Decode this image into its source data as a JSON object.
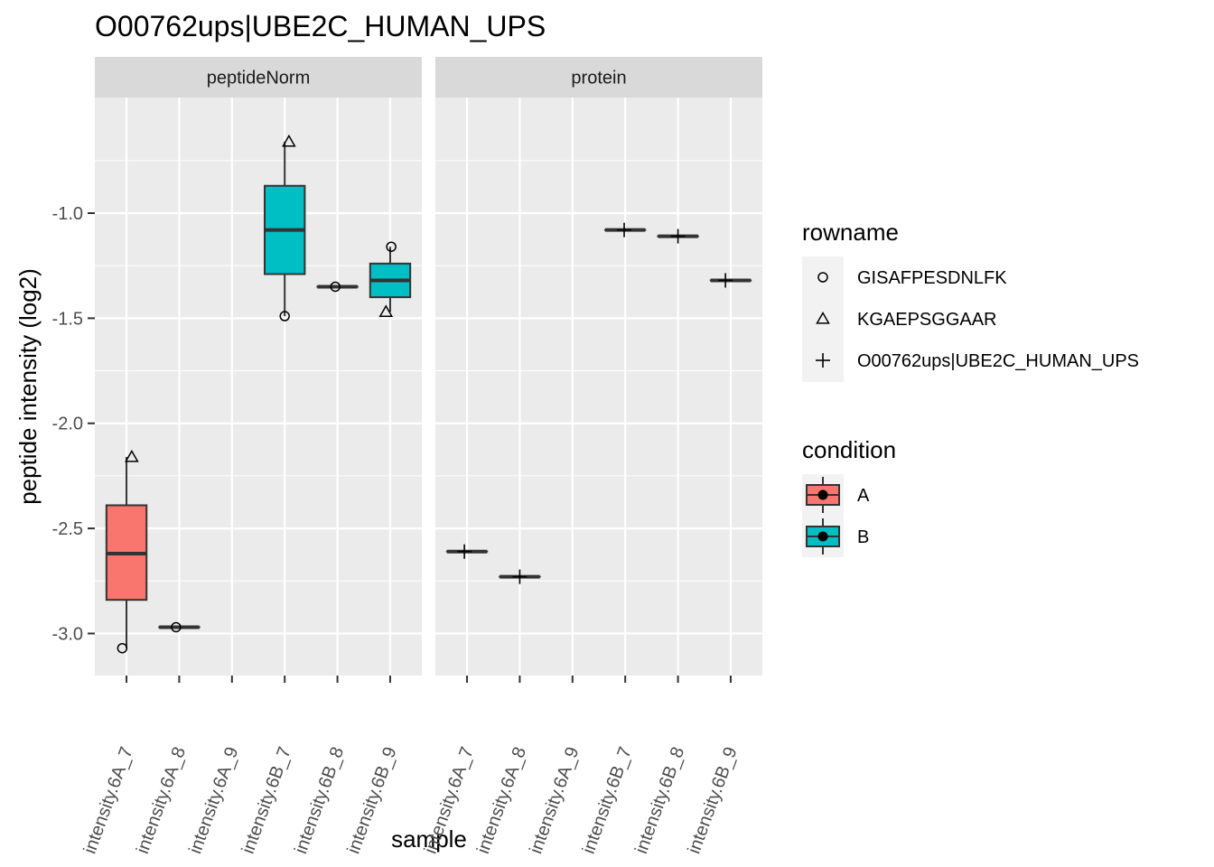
{
  "chart_data": {
    "type": "boxplot",
    "title": "O00762ups|UBE2C_HUMAN_UPS",
    "xlabel": "sample",
    "ylabel": "peptide intensity (log2)",
    "ylim": [
      -3.2,
      -0.45
    ],
    "yticks": [
      -3.0,
      -2.5,
      -2.0,
      -1.5,
      -1.0
    ],
    "ytick_labels": [
      "-3.0",
      "-2.5",
      "-2.0",
      "-1.5",
      "-1.0"
    ],
    "grid": true,
    "categories": [
      "Intensity.6A_7",
      "Intensity.6A_8",
      "Intensity.6A_9",
      "Intensity.6B_7",
      "Intensity.6B_8",
      "Intensity.6B_9"
    ],
    "category_tick_labels": [
      "intensity.6A_7",
      "intensity.6A_8",
      "intensity.6A_9",
      "intensity.6B_7",
      "intensity.6B_8",
      "intensity.6B_9"
    ],
    "facets": [
      {
        "label": "peptideNorm",
        "boxes": [
          {
            "category": 0,
            "condition": "A",
            "low": -3.07,
            "q1": -2.84,
            "median": -2.62,
            "q3": -2.39,
            "high": -2.16
          },
          {
            "category": 1,
            "condition": "A",
            "low": -2.97,
            "q1": -2.97,
            "median": -2.97,
            "q3": -2.97,
            "high": -2.97
          },
          {
            "category": 3,
            "condition": "B",
            "low": -1.49,
            "q1": -1.29,
            "median": -1.08,
            "q3": -0.87,
            "high": -0.66
          },
          {
            "category": 4,
            "condition": "B",
            "low": -1.35,
            "q1": -1.35,
            "median": -1.35,
            "q3": -1.35,
            "high": -1.35
          },
          {
            "category": 5,
            "condition": "B",
            "low": -1.47,
            "q1": -1.4,
            "median": -1.32,
            "q3": -1.24,
            "high": -1.16
          }
        ],
        "points": [
          {
            "category": 0,
            "rowname": "GISAFPESDNLFK",
            "y": -3.07,
            "jitter": -0.08
          },
          {
            "category": 0,
            "rowname": "KGAEPSGGAAR",
            "y": -2.16,
            "jitter": 0.1
          },
          {
            "category": 1,
            "rowname": "GISAFPESDNLFK",
            "y": -2.97,
            "jitter": -0.06
          },
          {
            "category": 3,
            "rowname": "GISAFPESDNLFK",
            "y": -1.49,
            "jitter": 0.0
          },
          {
            "category": 3,
            "rowname": "KGAEPSGGAAR",
            "y": -0.66,
            "jitter": 0.08
          },
          {
            "category": 4,
            "rowname": "GISAFPESDNLFK",
            "y": -1.35,
            "jitter": -0.04
          },
          {
            "category": 5,
            "rowname": "GISAFPESDNLFK",
            "y": -1.16,
            "jitter": 0.02
          },
          {
            "category": 5,
            "rowname": "KGAEPSGGAAR",
            "y": -1.47,
            "jitter": -0.08
          }
        ]
      },
      {
        "label": "protein",
        "boxes": [
          {
            "category": 0,
            "condition": "A",
            "low": -2.61,
            "q1": -2.61,
            "median": -2.61,
            "q3": -2.61,
            "high": -2.61
          },
          {
            "category": 1,
            "condition": "A",
            "low": -2.73,
            "q1": -2.73,
            "median": -2.73,
            "q3": -2.73,
            "high": -2.73
          },
          {
            "category": 3,
            "condition": "B",
            "low": -1.08,
            "q1": -1.08,
            "median": -1.08,
            "q3": -1.08,
            "high": -1.08
          },
          {
            "category": 4,
            "condition": "B",
            "low": -1.11,
            "q1": -1.11,
            "median": -1.11,
            "q3": -1.11,
            "high": -1.11
          },
          {
            "category": 5,
            "condition": "B",
            "low": -1.32,
            "q1": -1.32,
            "median": -1.32,
            "q3": -1.32,
            "high": -1.32
          }
        ],
        "points": [
          {
            "category": 0,
            "rowname": "O00762ups|UBE2C_HUMAN_UPS",
            "y": -2.61,
            "jitter": -0.05
          },
          {
            "category": 1,
            "rowname": "O00762ups|UBE2C_HUMAN_UPS",
            "y": -2.73,
            "jitter": 0.0
          },
          {
            "category": 3,
            "rowname": "O00762ups|UBE2C_HUMAN_UPS",
            "y": -1.08,
            "jitter": -0.02
          },
          {
            "category": 4,
            "rowname": "O00762ups|UBE2C_HUMAN_UPS",
            "y": -1.11,
            "jitter": 0.0
          },
          {
            "category": 5,
            "rowname": "O00762ups|UBE2C_HUMAN_UPS",
            "y": -1.32,
            "jitter": -0.1
          }
        ]
      }
    ],
    "legends": [
      {
        "title": "rowname",
        "items": [
          {
            "label": "GISAFPESDNLFK",
            "shape": "circle"
          },
          {
            "label": "KGAEPSGGAAR",
            "shape": "triangle"
          },
          {
            "label": "O00762ups|UBE2C_HUMAN_UPS",
            "shape": "plus"
          }
        ]
      },
      {
        "title": "condition",
        "items": [
          {
            "label": "A",
            "color": "#F8766D"
          },
          {
            "label": "B",
            "color": "#00BFC4"
          }
        ]
      }
    ],
    "legend_position": "right",
    "colors": {
      "A": "#F8766D",
      "B": "#00BFC4",
      "panel": "#EBEBEB",
      "strip": "#D9D9D9",
      "grid": "#FFFFFF"
    }
  }
}
